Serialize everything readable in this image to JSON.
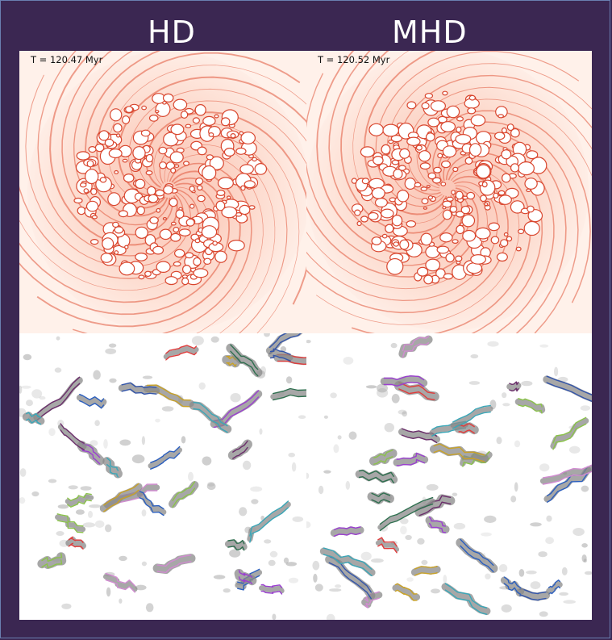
{
  "columns": {
    "left": "HD",
    "right": "MHD"
  },
  "panels": {
    "hd_time": "T = 120.47 Myr",
    "mhd_time": "T = 120.52 Myr"
  },
  "colors": {
    "background": "#3b2752",
    "density_map": "#e8553a",
    "clump_contours": [
      "#2b5fbf",
      "#9b3fd1",
      "#3aa7b8",
      "#8bc34a",
      "#c9a227",
      "#6b2e6b",
      "#e03c3c",
      "#2f6f4f",
      "#d18bd1",
      "#3355aa"
    ]
  }
}
